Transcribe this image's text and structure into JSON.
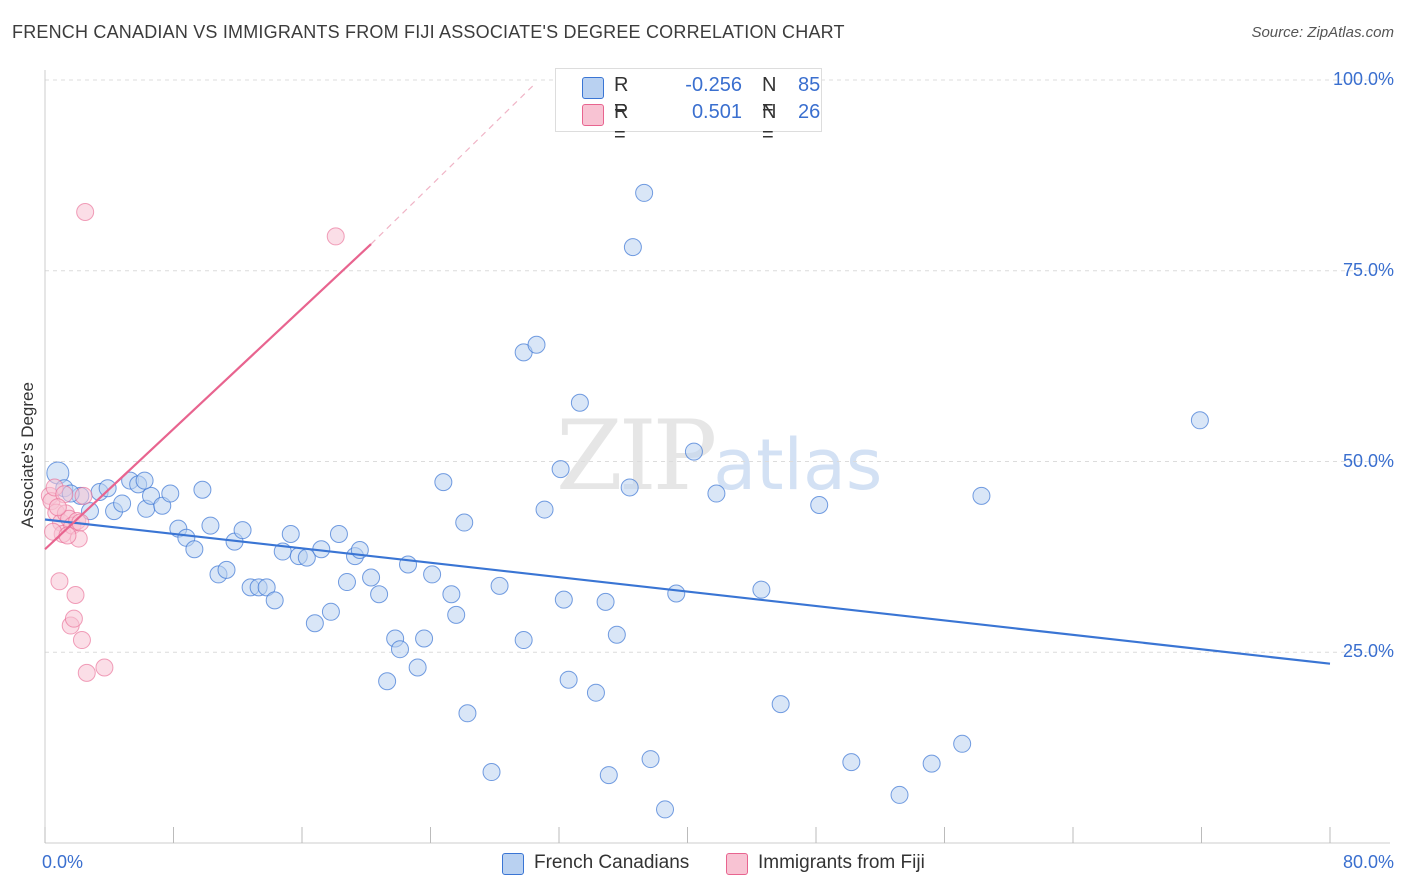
{
  "title": "FRENCH CANADIAN VS IMMIGRANTS FROM FIJI ASSOCIATE'S DEGREE CORRELATION CHART",
  "source": "Source: ZipAtlas.com",
  "watermark": {
    "zip": "ZIP",
    "atlas": "atlas"
  },
  "colors": {
    "blue": "#3a75d4",
    "blue_fill": "#b9d1f1",
    "pink": "#e8648f",
    "pink_fill": "#f8c3d3",
    "grid": "#dcdcdc",
    "axis_text": "#3a6fcf"
  },
  "legend_top": [
    {
      "r_label": "R =",
      "r_value": "-0.256",
      "n_label": "N =",
      "n_value": "85"
    },
    {
      "r_label": "R =",
      "r_value": "0.501",
      "n_label": "N =",
      "n_value": "26"
    }
  ],
  "legend_bottom": [
    "French Canadians",
    "Immigrants from Fiji"
  ],
  "chart_data": {
    "type": "scatter",
    "title": "FRENCH CANADIAN VS IMMIGRANTS FROM FIJI ASSOCIATE'S DEGREE CORRELATION CHART",
    "xlabel": "",
    "ylabel": "Associate's Degree",
    "xlim": [
      0,
      80
    ],
    "ylim": [
      0,
      105
    ],
    "x_tick_labels": [
      "0.0%",
      "80.0%"
    ],
    "y_ticks": [
      25,
      50,
      75,
      100
    ],
    "y_tick_labels": [
      "25.0%",
      "50.0%",
      "75.0%",
      "100.0%"
    ],
    "grid": true,
    "series": [
      {
        "name": "French Canadians",
        "r": -0.256,
        "n": 85,
        "trendline": {
          "x": [
            0,
            80
          ],
          "y": [
            42.4,
            23.5
          ]
        },
        "points": [
          {
            "x": 0.8,
            "y": 48.5
          },
          {
            "x": 1.2,
            "y": 46.5
          },
          {
            "x": 2.2,
            "y": 45.5
          },
          {
            "x": 2.8,
            "y": 43.5
          },
          {
            "x": 3.4,
            "y": 46.0
          },
          {
            "x": 3.9,
            "y": 46.5
          },
          {
            "x": 4.3,
            "y": 43.5
          },
          {
            "x": 4.8,
            "y": 44.5
          },
          {
            "x": 5.3,
            "y": 47.5
          },
          {
            "x": 5.8,
            "y": 47.0
          },
          {
            "x": 6.3,
            "y": 43.8
          },
          {
            "x": 6.6,
            "y": 45.5
          },
          {
            "x": 7.3,
            "y": 44.2
          },
          {
            "x": 7.8,
            "y": 45.8
          },
          {
            "x": 8.3,
            "y": 41.2
          },
          {
            "x": 8.8,
            "y": 40.0
          },
          {
            "x": 9.3,
            "y": 38.5
          },
          {
            "x": 9.8,
            "y": 46.3
          },
          {
            "x": 10.3,
            "y": 41.6
          },
          {
            "x": 10.8,
            "y": 35.2
          },
          {
            "x": 11.3,
            "y": 35.8
          },
          {
            "x": 11.8,
            "y": 39.5
          },
          {
            "x": 12.3,
            "y": 41.0
          },
          {
            "x": 12.8,
            "y": 33.5
          },
          {
            "x": 13.3,
            "y": 33.5
          },
          {
            "x": 13.8,
            "y": 33.5
          },
          {
            "x": 14.3,
            "y": 31.8
          },
          {
            "x": 14.8,
            "y": 38.2
          },
          {
            "x": 15.3,
            "y": 40.5
          },
          {
            "x": 15.8,
            "y": 37.6
          },
          {
            "x": 16.3,
            "y": 37.4
          },
          {
            "x": 16.8,
            "y": 28.8
          },
          {
            "x": 17.2,
            "y": 38.5
          },
          {
            "x": 17.8,
            "y": 30.3
          },
          {
            "x": 18.3,
            "y": 40.5
          },
          {
            "x": 18.8,
            "y": 34.2
          },
          {
            "x": 19.3,
            "y": 37.6
          },
          {
            "x": 19.6,
            "y": 38.4
          },
          {
            "x": 20.3,
            "y": 34.8
          },
          {
            "x": 20.8,
            "y": 32.6
          },
          {
            "x": 21.3,
            "y": 21.2
          },
          {
            "x": 21.8,
            "y": 26.8
          },
          {
            "x": 22.1,
            "y": 25.4
          },
          {
            "x": 22.6,
            "y": 36.5
          },
          {
            "x": 23.2,
            "y": 23.0
          },
          {
            "x": 23.6,
            "y": 26.8
          },
          {
            "x": 24.1,
            "y": 35.2
          },
          {
            "x": 24.8,
            "y": 47.3
          },
          {
            "x": 25.3,
            "y": 32.6
          },
          {
            "x": 25.6,
            "y": 29.9
          },
          {
            "x": 26.1,
            "y": 42.0
          },
          {
            "x": 26.3,
            "y": 17.0
          },
          {
            "x": 27.8,
            "y": 9.3
          },
          {
            "x": 28.3,
            "y": 33.7
          },
          {
            "x": 29.8,
            "y": 64.3
          },
          {
            "x": 29.8,
            "y": 26.6
          },
          {
            "x": 30.6,
            "y": 65.3
          },
          {
            "x": 31.1,
            "y": 43.7
          },
          {
            "x": 32.1,
            "y": 49.0
          },
          {
            "x": 32.3,
            "y": 31.9
          },
          {
            "x": 32.6,
            "y": 21.4
          },
          {
            "x": 33.3,
            "y": 57.7
          },
          {
            "x": 34.3,
            "y": 19.7
          },
          {
            "x": 34.9,
            "y": 31.6
          },
          {
            "x": 35.1,
            "y": 8.9
          },
          {
            "x": 35.6,
            "y": 27.3
          },
          {
            "x": 36.4,
            "y": 46.6
          },
          {
            "x": 36.6,
            "y": 78.1
          },
          {
            "x": 37.3,
            "y": 85.2
          },
          {
            "x": 37.7,
            "y": 11.0
          },
          {
            "x": 38.6,
            "y": 4.4
          },
          {
            "x": 39.3,
            "y": 32.7
          },
          {
            "x": 40.4,
            "y": 51.3
          },
          {
            "x": 41.8,
            "y": 45.8
          },
          {
            "x": 44.6,
            "y": 33.2
          },
          {
            "x": 45.8,
            "y": 18.2
          },
          {
            "x": 48.2,
            "y": 44.3
          },
          {
            "x": 50.2,
            "y": 10.6
          },
          {
            "x": 53.2,
            "y": 6.3
          },
          {
            "x": 55.2,
            "y": 10.4
          },
          {
            "x": 57.1,
            "y": 13.0
          },
          {
            "x": 58.3,
            "y": 45.5
          },
          {
            "x": 71.9,
            "y": 55.4
          },
          {
            "x": 6.2,
            "y": 47.5
          },
          {
            "x": 1.6,
            "y": 45.8
          }
        ]
      },
      {
        "name": "Immigrants from Fiji",
        "r": 0.501,
        "n": 26,
        "trendline": {
          "x": [
            0,
            20.3
          ],
          "y": [
            38.5,
            78.5
          ]
        },
        "trendline_extension": {
          "x": [
            20.3,
            30.5
          ],
          "y": [
            78.5,
            99.5
          ]
        },
        "points": [
          {
            "x": 0.3,
            "y": 45.5
          },
          {
            "x": 0.4,
            "y": 44.8
          },
          {
            "x": 0.6,
            "y": 46.6
          },
          {
            "x": 0.7,
            "y": 43.3
          },
          {
            "x": 0.9,
            "y": 34.3
          },
          {
            "x": 1.0,
            "y": 42.0
          },
          {
            "x": 1.1,
            "y": 40.5
          },
          {
            "x": 1.3,
            "y": 43.2
          },
          {
            "x": 1.5,
            "y": 42.5
          },
          {
            "x": 1.6,
            "y": 28.5
          },
          {
            "x": 1.7,
            "y": 41.6
          },
          {
            "x": 1.8,
            "y": 29.4
          },
          {
            "x": 1.9,
            "y": 32.5
          },
          {
            "x": 2.0,
            "y": 42.2
          },
          {
            "x": 2.1,
            "y": 39.9
          },
          {
            "x": 2.3,
            "y": 26.6
          },
          {
            "x": 2.4,
            "y": 45.5
          },
          {
            "x": 2.6,
            "y": 22.3
          },
          {
            "x": 2.5,
            "y": 82.7
          },
          {
            "x": 3.7,
            "y": 23.0
          },
          {
            "x": 18.1,
            "y": 79.5
          },
          {
            "x": 0.5,
            "y": 40.8
          },
          {
            "x": 1.2,
            "y": 45.7
          },
          {
            "x": 0.8,
            "y": 44.0
          },
          {
            "x": 1.4,
            "y": 40.3
          },
          {
            "x": 2.2,
            "y": 42.0
          }
        ]
      }
    ]
  }
}
